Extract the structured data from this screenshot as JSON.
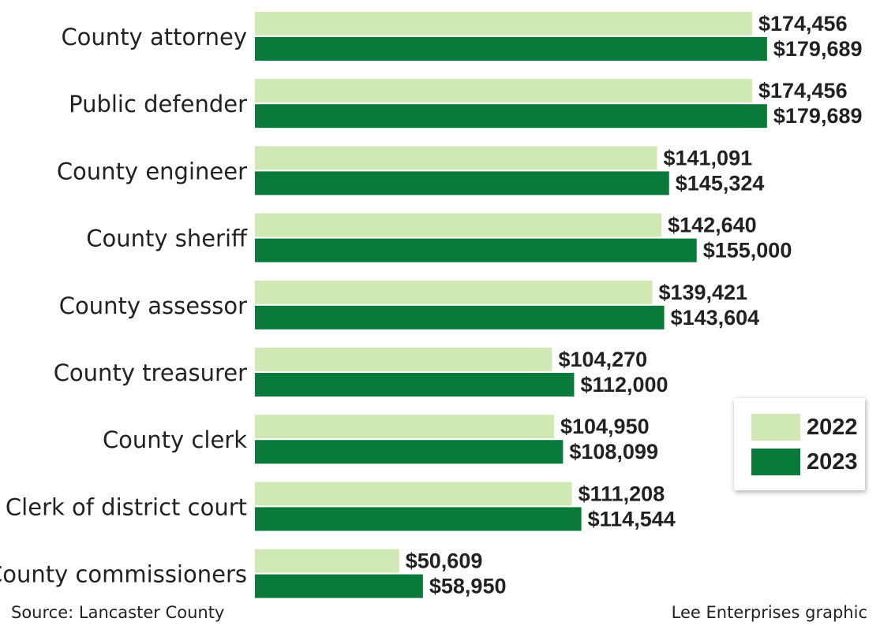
{
  "chart_data": {
    "type": "bar",
    "orientation": "horizontal",
    "categories": [
      "County attorney",
      "Public defender",
      "County engineer",
      "County sheriff",
      "County assessor",
      "County treasurer",
      "County clerk",
      "Clerk of district court",
      "County commissioners"
    ],
    "series": [
      {
        "name": "2022",
        "color": "#cfe8b4",
        "values": [
          174456,
          174456,
          141091,
          142640,
          139421,
          104270,
          104950,
          111208,
          50609
        ],
        "labels": [
          "$174,456",
          "$174,456",
          "$141,091",
          "$142,640",
          "$139,421",
          "$104,270",
          "$104,950",
          "$111,208",
          "$50,609"
        ]
      },
      {
        "name": "2023",
        "color": "#0a7a3a",
        "values": [
          179689,
          179689,
          145324,
          155000,
          143604,
          112000,
          108099,
          114544,
          58950
        ],
        "labels": [
          "$179,689",
          "$179,689",
          "$145,324",
          "$155,000",
          "$143,604",
          "$112,000",
          "$108,099",
          "$114,544",
          "$58,950"
        ]
      }
    ],
    "xlim": [
      0,
      180000
    ],
    "grid": false,
    "legend_position": "right"
  },
  "footer": {
    "source": "Source: Lancaster County",
    "credit": "Lee Enterprises graphic"
  }
}
